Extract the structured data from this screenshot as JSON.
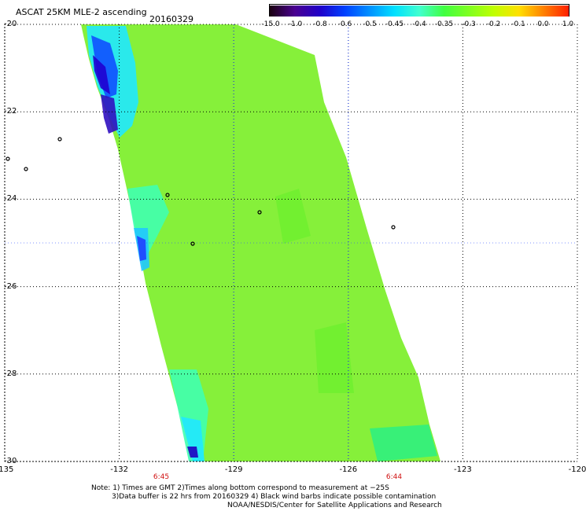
{
  "header": {
    "title": "ASCAT 25KM MLE-2 ascending",
    "date": "20160329"
  },
  "colorbar": {
    "labels": [
      "-15.0",
      "-1.0",
      "-0.8",
      "-0.6",
      "-0.5",
      "-0.45",
      "-0.4",
      "-0.35",
      "-0.3",
      "-0.2",
      "-0.1",
      "0.0",
      "1.0"
    ],
    "colors": [
      "#1a0010",
      "#4a0090",
      "#2000c8",
      "#0040ff",
      "#0090ff",
      "#00e0ff",
      "#40ffd0",
      "#40ff40",
      "#80ff20",
      "#c0ff00",
      "#ffe000",
      "#ff8000",
      "#ff2000"
    ]
  },
  "map": {
    "lat_labels": [
      "-20",
      "-22",
      "-24",
      "-26",
      "-28",
      "-30"
    ],
    "lat_values": [
      -20,
      -22,
      -24,
      -26,
      -28,
      -30
    ],
    "lon_labels": [
      "-135",
      "-132",
      "-129",
      "-126",
      "-123",
      "-120"
    ],
    "lon_values": [
      -135,
      -132,
      -129,
      -126,
      -123,
      -120
    ],
    "lat_range": [
      -30,
      -20
    ],
    "lon_range": [
      -135,
      -120
    ],
    "grid": "dotted",
    "swath_color": "#86f03a",
    "times": [
      {
        "label": "6:45",
        "lon": -130.9
      },
      {
        "label": "6:44",
        "lon": -124.8
      }
    ]
  },
  "notes": {
    "line1": "Note: 1) Times are GMT 2)Times along bottom correspond to measurement at −25S",
    "line2": "3)Data buffer is 22 hrs from 20160329 4) Black wind barbs indicate possible contamination",
    "line3": "NOAA/NESDIS/Center for Satellite Applications and Research"
  }
}
